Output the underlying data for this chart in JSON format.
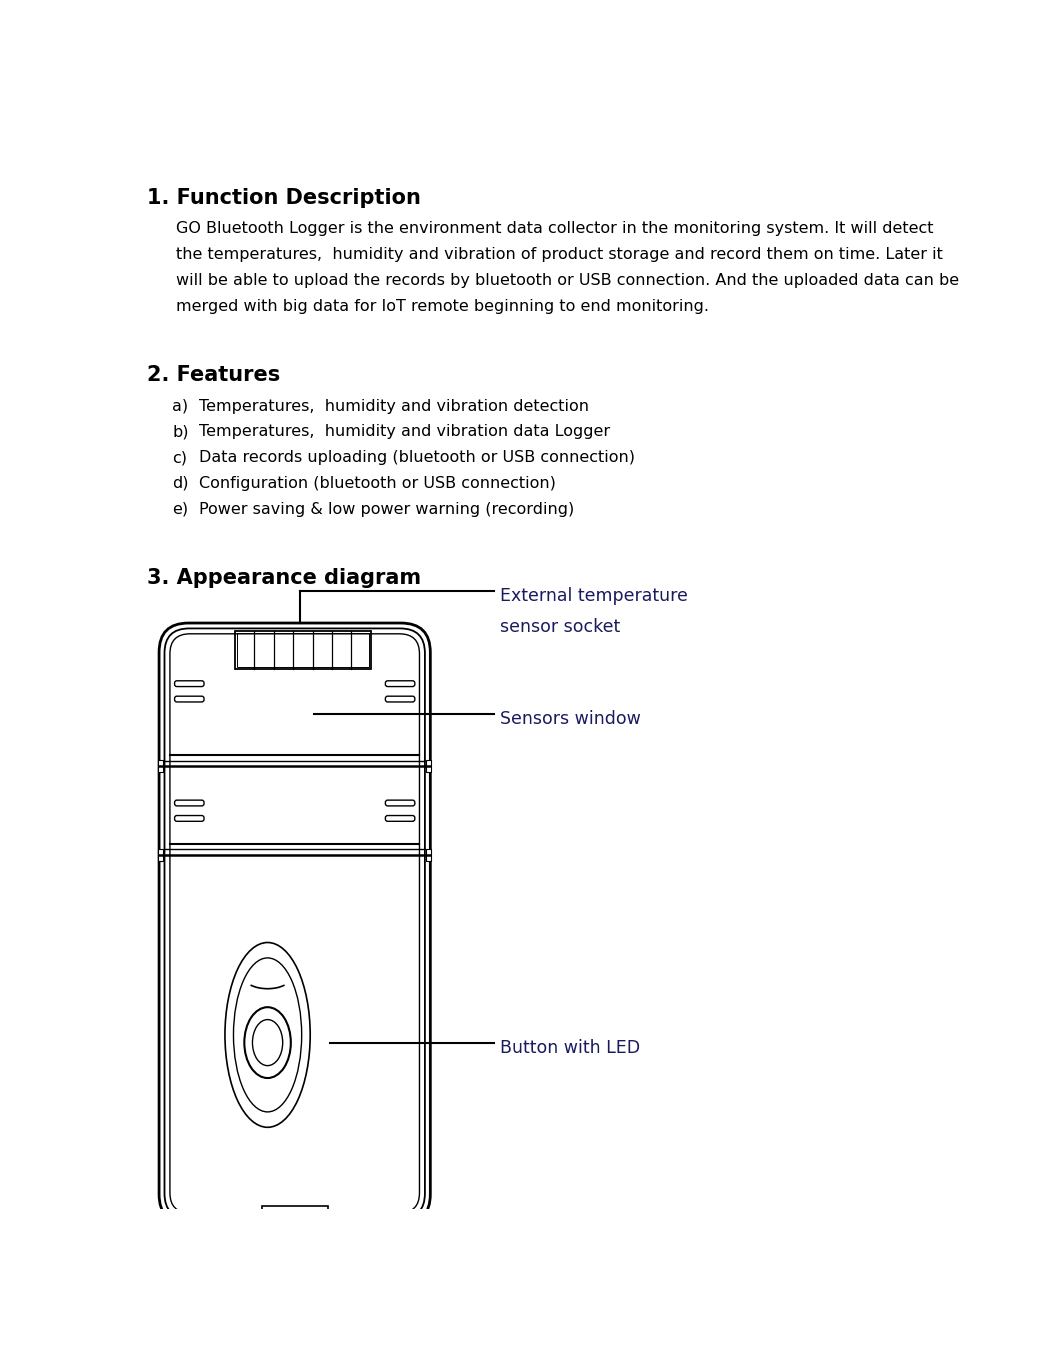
{
  "title1": "1. Function Description",
  "para1_lines": [
    "GO Bluetooth Logger is the environment data collector in the monitoring system. It will detect",
    "the temperatures,  humidity and vibration of product storage and record them on time. Later it",
    "will be able to upload the records by bluetooth or USB connection. And the uploaded data can be",
    "merged with big data for IoT remote beginning to end monitoring."
  ],
  "title2": "2. Features",
  "features": [
    [
      "a)",
      "Temperatures,  humidity and vibration detection"
    ],
    [
      "b)",
      "Temperatures,  humidity and vibration data Logger"
    ],
    [
      "c)",
      "Data records uploading (bluetooth or USB connection)"
    ],
    [
      "d)",
      "Configuration (bluetooth or USB connection)"
    ],
    [
      "e)",
      "Power saving & low power warning (recording)"
    ]
  ],
  "title3": "3. Appearance diagram",
  "label1_lines": [
    "External temperature",
    "sensor socket"
  ],
  "label2": "Sensors window",
  "label3": "Button with LED",
  "bg_color": "#ffffff",
  "text_color": "#000000",
  "label_color": "#1a1a5e",
  "heading_font_size": 15,
  "body_font_size": 11.5,
  "label_font_size": 12.5
}
